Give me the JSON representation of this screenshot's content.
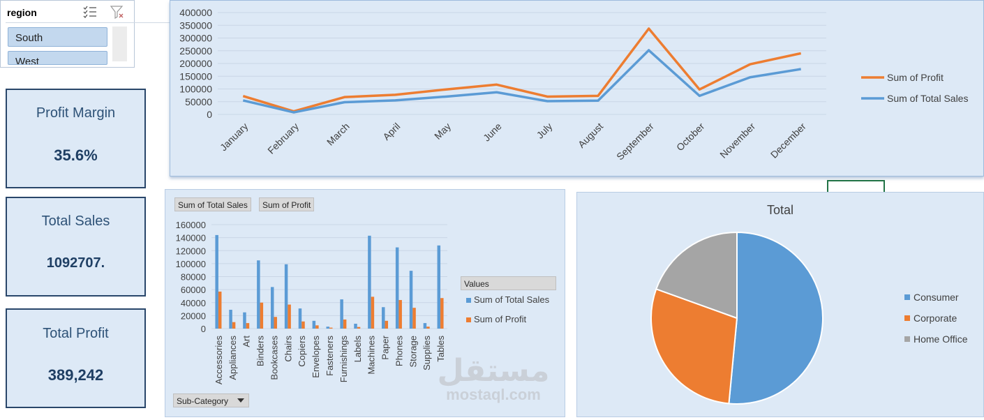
{
  "slicer": {
    "title": "region",
    "items": [
      "South",
      "West"
    ],
    "multi_select_icon": "multi-select-icon",
    "clear_filter_icon": "clear-filter-icon"
  },
  "kpis": [
    {
      "label": "Profit Margin",
      "value": "35.6%"
    },
    {
      "label": "Total Sales",
      "value": "1092707."
    },
    {
      "label": "Total Profit",
      "value": "389,242"
    }
  ],
  "chart_data": [
    {
      "type": "line",
      "categories": [
        "January",
        "February",
        "March",
        "April",
        "May",
        "June",
        "July",
        "August",
        "September",
        "October",
        "November",
        "December"
      ],
      "series": [
        {
          "name": "Sum of Profit",
          "color": "#ed7d31",
          "values": [
            72000,
            12000,
            68000,
            77000,
            98000,
            117000,
            70000,
            73000,
            337000,
            98000,
            197000,
            240000
          ]
        },
        {
          "name": "Sum of Total Sales",
          "color": "#5b9bd5",
          "values": [
            55000,
            8000,
            48000,
            55000,
            70000,
            87000,
            52000,
            54000,
            252000,
            73000,
            146000,
            178000
          ]
        }
      ],
      "ylim": [
        0,
        400000
      ],
      "yticks": [
        "400000",
        "350000",
        "300000",
        "250000",
        "200000",
        "150000",
        "100000",
        "50000",
        "0"
      ],
      "grid": true,
      "legend_position": "right"
    },
    {
      "type": "bar",
      "field_buttons": [
        "Sum of Total Sales",
        "Sum of Profit"
      ],
      "axis_button": "Sub-Category",
      "legend_title": "Values",
      "categories": [
        "Accessories",
        "Appliances",
        "Art",
        "Binders",
        "Bookcases",
        "Chairs",
        "Copiers",
        "Envelopes",
        "Fasteners",
        "Furnishings",
        "Labels",
        "Machines",
        "Paper",
        "Phones",
        "Storage",
        "Supplies",
        "Tables"
      ],
      "series": [
        {
          "name": "Sum of Total Sales",
          "color": "#5b9bd5",
          "values": [
            144000,
            29000,
            25000,
            105000,
            64000,
            99000,
            31000,
            12000,
            3000,
            45000,
            7500,
            143000,
            33000,
            125000,
            89000,
            8500,
            128000
          ]
        },
        {
          "name": "Sum of Profit",
          "color": "#ed7d31",
          "values": [
            57000,
            10000,
            8500,
            40000,
            18000,
            37000,
            11000,
            5000,
            1500,
            14000,
            2500,
            49000,
            12000,
            44000,
            32000,
            3000,
            47000
          ]
        }
      ],
      "ylim": [
        0,
        160000
      ],
      "yticks": [
        "160000",
        "140000",
        "120000",
        "100000",
        "80000",
        "60000",
        "40000",
        "20000",
        "0"
      ],
      "grid": true,
      "legend_position": "right"
    },
    {
      "type": "pie",
      "title": "Total",
      "labels": [
        "Consumer",
        "Corporate",
        "Home Office"
      ],
      "values": [
        51.5,
        29.0,
        19.5
      ],
      "colors": [
        "#5b9bd5",
        "#ed7d31",
        "#a5a5a5"
      ],
      "legend_position": "right"
    }
  ],
  "watermark": {
    "arabic": "مستقل",
    "latin": "mostaql.com"
  }
}
